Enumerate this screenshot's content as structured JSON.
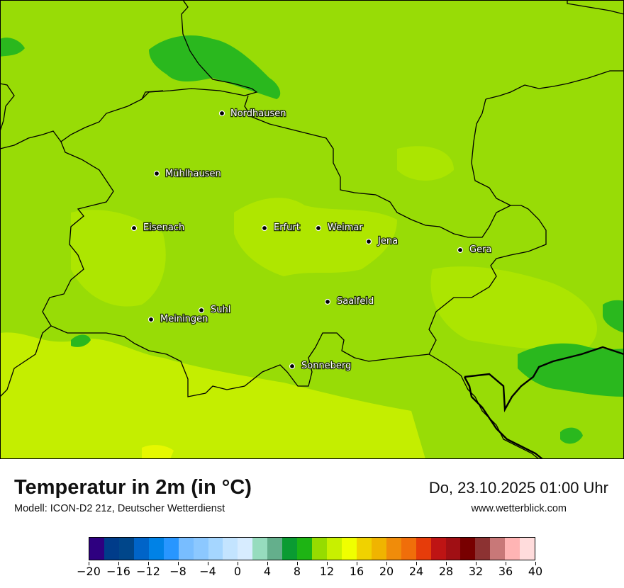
{
  "map": {
    "cities": [
      {
        "name": "Nordhausen"
      },
      {
        "name": "Mühlhausen"
      },
      {
        "name": "Eisenach"
      },
      {
        "name": "Erfurt"
      },
      {
        "name": "Weimar"
      },
      {
        "name": "Jena"
      },
      {
        "name": "Gera"
      },
      {
        "name": "Suhl"
      },
      {
        "name": "Meiningen"
      },
      {
        "name": "Saalfeld"
      },
      {
        "name": "Sonneberg"
      }
    ]
  },
  "footer": {
    "title": "Temperatur in 2m (in °C)",
    "subtitle": "Modell: ICON-D2 21z, Deutscher Wetterdienst",
    "datetime": "Do, 23.10.2025 01:00 Uhr",
    "website": "www.wetterblick.com"
  },
  "legend": {
    "colors": [
      "#2e0080",
      "#003c8a",
      "#00468a",
      "#0064c8",
      "#0082e6",
      "#2896ff",
      "#78bdff",
      "#8cc8ff",
      "#a5d6ff",
      "#c3e4ff",
      "#d7ecff",
      "#96dcbe",
      "#64af8c",
      "#0a9b32",
      "#1eb414",
      "#96dc00",
      "#c8f000",
      "#f0ff00",
      "#f0d200",
      "#f0b400",
      "#f08c0a",
      "#f06e0a",
      "#e63c0a",
      "#be1414",
      "#a00f14",
      "#780000",
      "#8c3232",
      "#c87878",
      "#ffb4b4",
      "#ffdcdc"
    ],
    "tick_labels": [
      "−20",
      "−16",
      "−12",
      "−8",
      "−4",
      "0",
      "4",
      "8",
      "12",
      "16",
      "20",
      "24",
      "28",
      "32",
      "36",
      "40"
    ],
    "min": -20,
    "max": 40
  }
}
